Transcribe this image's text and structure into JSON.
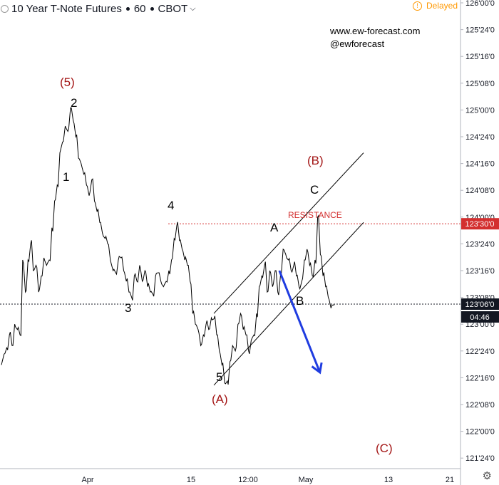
{
  "header": {
    "symbol_name": "10 Year T-Note Futures",
    "interval": "60",
    "exchange": "CBOT",
    "dropdown_icon": "chevron-down-icon",
    "delayed_label": "Delayed"
  },
  "brand": {
    "site": "www.ew-forecast.com",
    "handle": "@ewforecast"
  },
  "colors": {
    "wave_red": "#a31515",
    "arrow_blue": "#1f3ce0",
    "resistance_red": "#d32f2f",
    "price_line": "#000000"
  },
  "chart_data": {
    "type": "line",
    "price_axis_labels": [
      "126'00'0",
      "125'24'0",
      "125'16'0",
      "125'08'0",
      "125'00'0",
      "124'24'0",
      "124'16'0",
      "124'08'0",
      "124'00'0",
      "123'24'0",
      "123'16'0",
      "123'08'0",
      "123'00'0",
      "122'24'0",
      "122'16'0",
      "122'08'0",
      "122'00'0",
      "121'24'0"
    ],
    "time_axis_labels": [
      "Apr",
      "15",
      "12:00",
      "May",
      "13",
      "21"
    ],
    "current_price_label": "123'06'0",
    "countdown_label": "04:46",
    "resistance": {
      "label": "RESISTANCE",
      "price_label": "123'30'0",
      "value": 123.9375
    },
    "current_price": 123.1875,
    "ylim": [
      121.6,
      126.05
    ],
    "wave_labels": {
      "five_paren": "(5)",
      "two": "2",
      "one": "1",
      "three": "3",
      "four": "4",
      "five": "5",
      "a_paren": "(A)",
      "a": "A",
      "b_paren": "(B)",
      "b": "B",
      "c": "C",
      "c_paren": "(C)"
    },
    "price_series": [
      122.62,
      122.72,
      122.78,
      122.9,
      122.8,
      123.0,
      122.95,
      122.9,
      123.6,
      123.3,
      123.6,
      123.75,
      123.5,
      123.55,
      123.3,
      123.45,
      123.62,
      123.55,
      123.6,
      123.9,
      124.15,
      124.3,
      124.6,
      124.7,
      124.85,
      124.8,
      125.02,
      124.9,
      124.75,
      124.55,
      124.5,
      124.4,
      124.3,
      124.2,
      124.35,
      124.15,
      124.05,
      123.95,
      123.85,
      123.8,
      123.75,
      123.6,
      123.5,
      123.48,
      123.6,
      123.62,
      123.5,
      123.4,
      123.3,
      123.25,
      123.45,
      123.4,
      123.55,
      123.4,
      123.5,
      123.35,
      123.3,
      123.28,
      123.45,
      123.48,
      123.4,
      123.35,
      123.4,
      123.5,
      123.6,
      123.8,
      123.92,
      123.78,
      123.7,
      123.6,
      123.55,
      123.4,
      123.1,
      123.0,
      122.95,
      122.8,
      122.9,
      123.0,
      122.95,
      123.06,
      123.05,
      122.9,
      122.75,
      122.62,
      122.45,
      122.47,
      122.65,
      122.8,
      122.75,
      123.0,
      123.1,
      122.95,
      122.9,
      122.75,
      122.85,
      122.9,
      123.1,
      123.35,
      123.45,
      123.55,
      123.3,
      123.5,
      123.35,
      123.5,
      123.3,
      123.45,
      123.7,
      123.65,
      123.6,
      123.5,
      123.55,
      123.45,
      123.35,
      123.4,
      123.6,
      123.7,
      123.55,
      123.45,
      123.6,
      124.0,
      123.65,
      123.45,
      123.35,
      123.25,
      123.15,
      123.18
    ],
    "channel": {
      "upper": [
        [
          122.0,
          123.1
        ],
        [
          170.0,
          124.6
        ]
      ],
      "lower": [
        [
          122.0,
          122.43
        ],
        [
          170.0,
          123.95
        ]
      ]
    },
    "projection_arrow": {
      "from": [
        143.0,
        123.5
      ],
      "to": [
        156.0,
        122.55
      ]
    }
  }
}
